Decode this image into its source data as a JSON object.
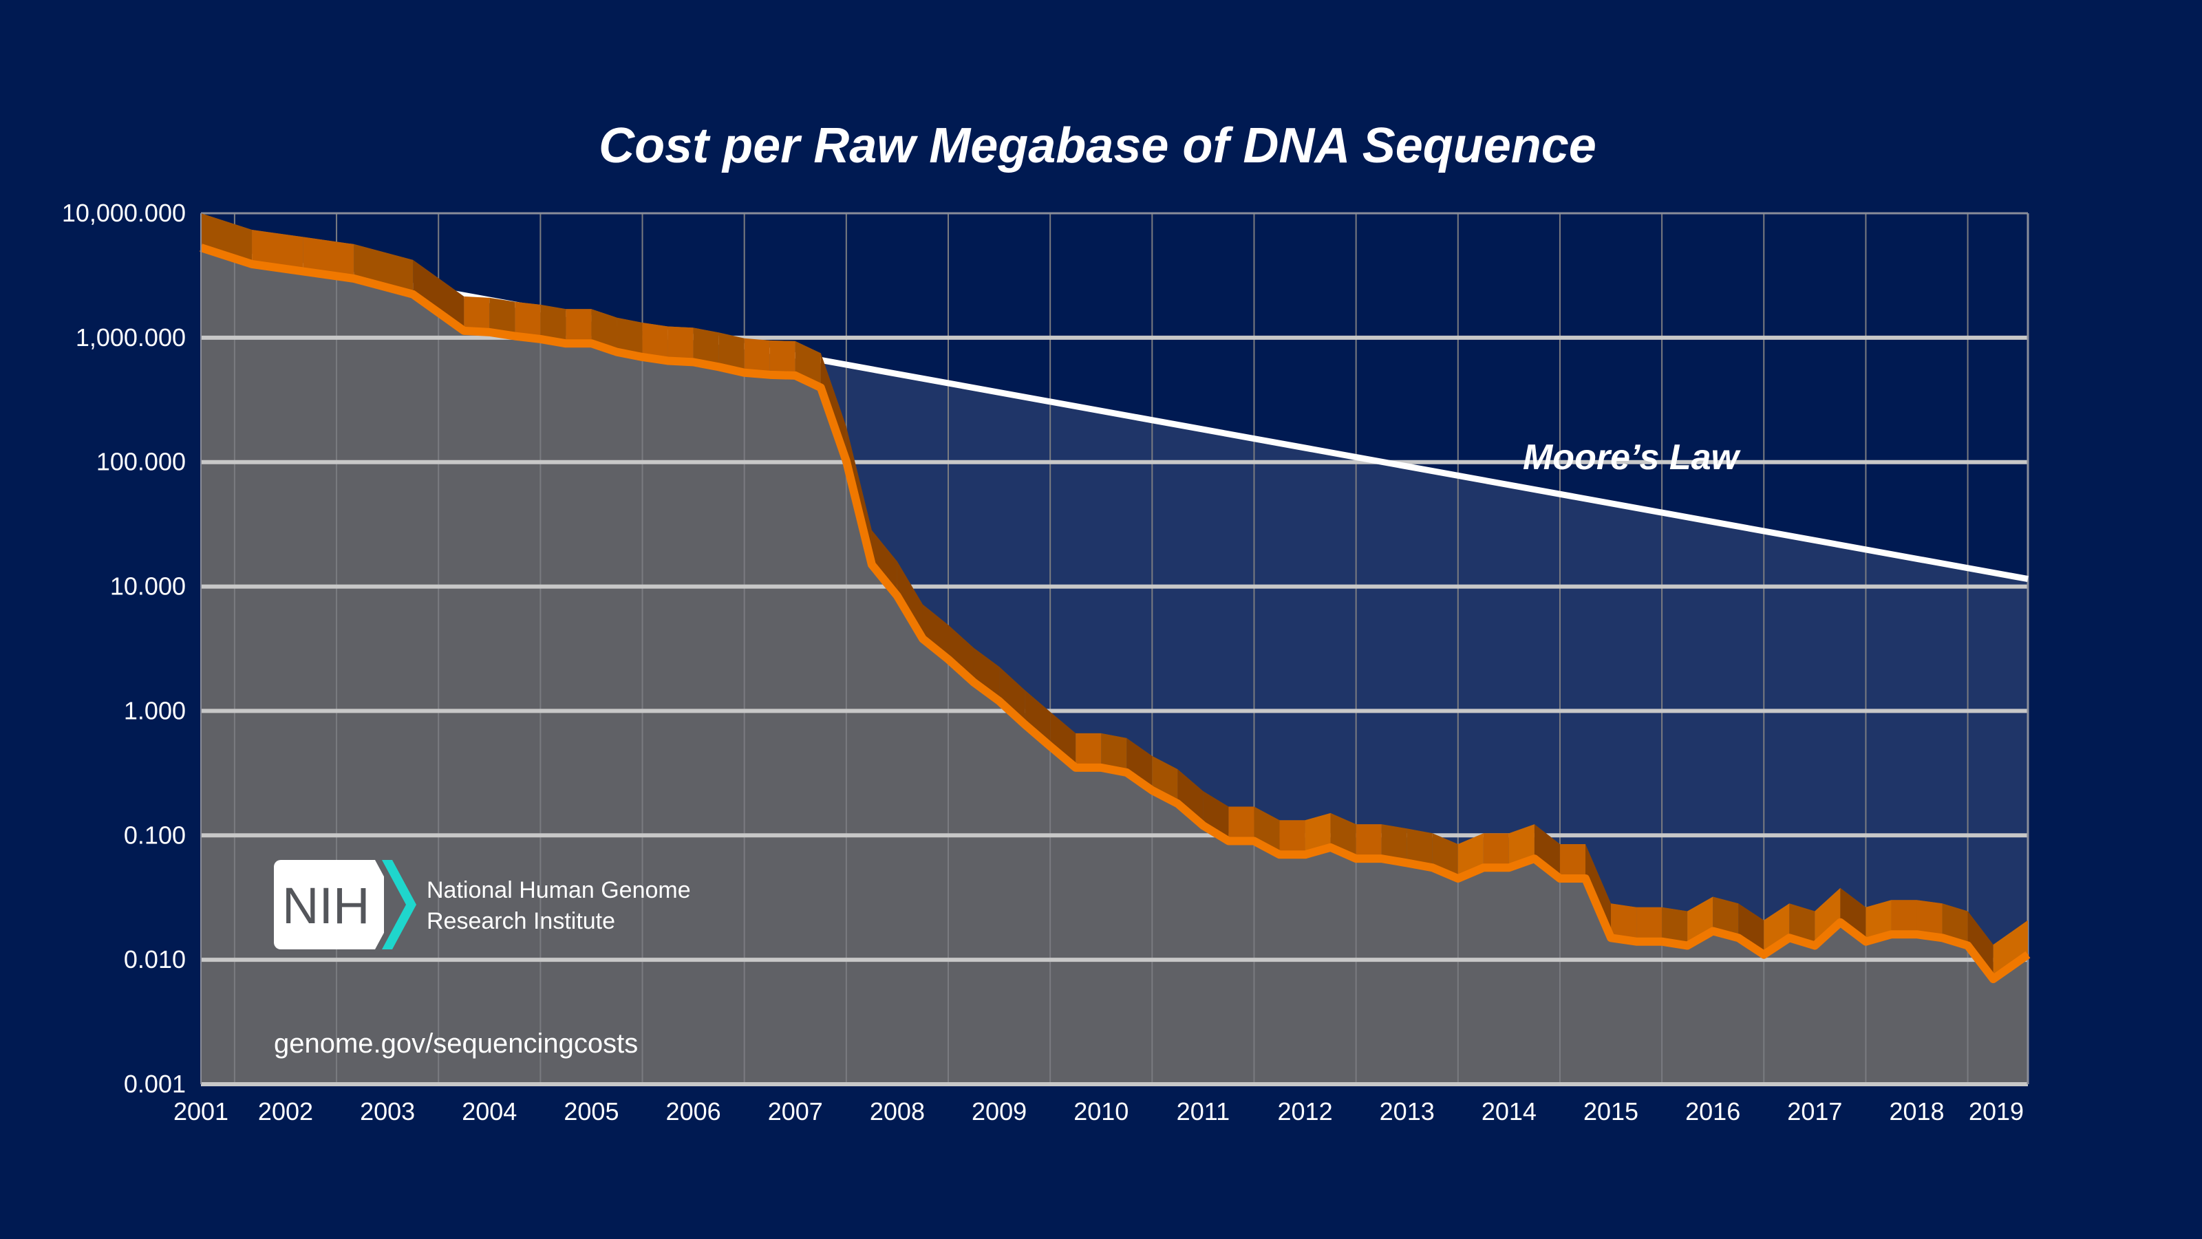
{
  "chart_data": {
    "type": "area",
    "title": "Cost per Raw Megabase of DNA Sequence",
    "xlabel": "",
    "ylabel": "",
    "y_scale": "log",
    "ylim": [
      0.001,
      10000
    ],
    "xlim": [
      2001.67,
      2019.59
    ],
    "grid": true,
    "y_ticks": [
      "10,000.000",
      "1,000.000",
      "100.000",
      "10.000",
      "1.000",
      "0.100",
      "0.010",
      "0.001"
    ],
    "x_ticks": [
      "2001",
      "2002",
      "2003",
      "2004",
      "2005",
      "2006",
      "2007",
      "2008",
      "2009",
      "2010",
      "2011",
      "2012",
      "2013",
      "2014",
      "2015",
      "2016",
      "2017",
      "2018",
      "2019"
    ],
    "series": [
      {
        "x": [
          2001.67,
          2002.17,
          2002.67,
          2003.17,
          2003.75,
          2004.25,
          2004.5,
          2004.75,
          2005.0,
          2005.25,
          2005.5,
          2005.75,
          2006.0,
          2006.25,
          2006.5,
          2006.75,
          2007.0,
          2007.25,
          2007.5,
          2007.75,
          2008.0,
          2008.25,
          2008.5,
          2008.75,
          2009.0,
          2009.25,
          2009.5,
          2009.75,
          2010.0,
          2010.25,
          2010.5,
          2010.75,
          2011.0,
          2011.25,
          2011.5,
          2011.75,
          2012.0,
          2012.25,
          2012.5,
          2012.75,
          2013.0,
          2013.25,
          2013.5,
          2013.75,
          2014.0,
          2014.25,
          2014.5,
          2014.75,
          2015.0,
          2015.25,
          2015.5,
          2015.75,
          2016.0,
          2016.25,
          2016.5,
          2016.75,
          2017.0,
          2017.25,
          2017.5,
          2017.75,
          2018.0,
          2018.25,
          2018.5,
          2018.75,
          2019.0,
          2019.25,
          2019.59
        ],
        "y": [
          5292,
          3899,
          3414,
          2986,
          2231,
          1136,
          1107,
          1029,
          974,
          898,
          899,
          767,
          699,
          652,
          636,
          582,
          523,
          503,
          496,
          397,
          102,
          15,
          8.4,
          3.8,
          2.6,
          1.7,
          1.2,
          0.78,
          0.52,
          0.35,
          0.35,
          0.32,
          0.23,
          0.18,
          0.12,
          0.09,
          0.09,
          0.07,
          0.07,
          0.08,
          0.065,
          0.065,
          0.06,
          0.055,
          0.045,
          0.055,
          0.055,
          0.065,
          0.045,
          0.045,
          0.015,
          0.014,
          0.014,
          0.013,
          0.017,
          0.015,
          0.011,
          0.015,
          0.013,
          0.02,
          0.014,
          0.016,
          0.016,
          0.015,
          0.013,
          0.007,
          0.011
        ],
        "color": "#f07800"
      },
      {
        "name": "Moore’s Law",
        "x": [
          2001.67,
          2019.59
        ],
        "y": [
          5292,
          11.5
        ],
        "color": "#ffffff"
      }
    ],
    "annotations": [
      "Moore’s Law"
    ]
  },
  "logo": {
    "mark": "NIH",
    "line1": "National Human Genome",
    "line2": "Research Institute"
  },
  "source_url": "genome.gov/sequencingcosts",
  "colors": {
    "background": "#001a52",
    "plot_fill": "#606166",
    "gap_fill": "#1f3568",
    "cost_line": "#f07800",
    "ribbon": "#c96200",
    "logo_accent": "#1fd6cc"
  }
}
